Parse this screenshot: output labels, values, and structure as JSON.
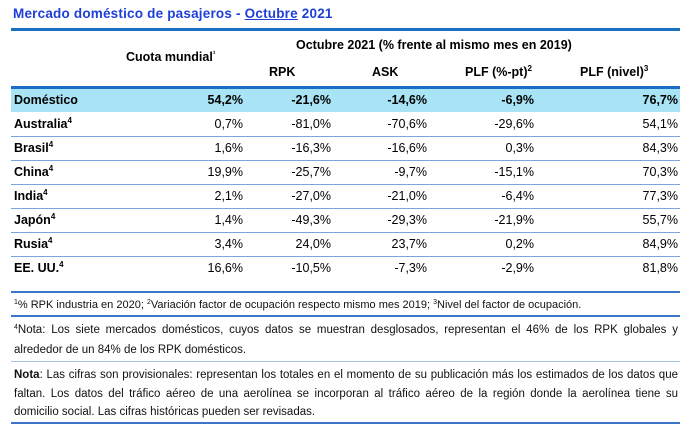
{
  "title": {
    "prefix": "Mercado doméstico de pasajeros - ",
    "month": "Octubre",
    "year": " 2021"
  },
  "header": {
    "group_label": "Octubre 2021 (% frente al mismo mes en 2019)",
    "share_label": "Cuota mundial",
    "share_sup": "¹",
    "columns": [
      {
        "label": "RPK",
        "sup": ""
      },
      {
        "label": "ASK",
        "sup": ""
      },
      {
        "label": "PLF (%-pt)",
        "sup": "2"
      },
      {
        "label": "PLF (nivel)",
        "sup": "3"
      }
    ]
  },
  "rows": [
    {
      "name": "Doméstico",
      "sup": "",
      "share": "54,2%",
      "rpk": "-21,6%",
      "ask": "-14,6%",
      "plf_pt": "-6,9%",
      "plf_level": "76,7%"
    },
    {
      "name": "Australia",
      "sup": "4",
      "share": "0,7%",
      "rpk": "-81,0%",
      "ask": "-70,6%",
      "plf_pt": "-29,6%",
      "plf_level": "54,1%"
    },
    {
      "name": "Brasil",
      "sup": "4",
      "share": "1,6%",
      "rpk": "-16,3%",
      "ask": "-16,6%",
      "plf_pt": "0,3%",
      "plf_level": "84,3%"
    },
    {
      "name": "China",
      "sup": "4",
      "share": "19,9%",
      "rpk": "-25,7%",
      "ask": "-9,7%",
      "plf_pt": "-15,1%",
      "plf_level": "70,3%"
    },
    {
      "name": "India",
      "sup": "4",
      "share": "2,1%",
      "rpk": "-27,0%",
      "ask": "-21,0%",
      "plf_pt": "-6,4%",
      "plf_level": "77,3%"
    },
    {
      "name": "Japón",
      "sup": "4",
      "share": "1,4%",
      "rpk": "-49,3%",
      "ask": "-29,3%",
      "plf_pt": "-21,9%",
      "plf_level": "55,7%"
    },
    {
      "name": "Rusia",
      "sup": "4",
      "share": "3,4%",
      "rpk": "24,0%",
      "ask": "23,7%",
      "plf_pt": "0,2%",
      "plf_level": "84,9%"
    },
    {
      "name": "EE. UU.",
      "sup": "4",
      "share": "16,6%",
      "rpk": "-10,5%",
      "ask": "-7,3%",
      "plf_pt": "-2,9%",
      "plf_level": "81,8%"
    }
  ],
  "footnotes": {
    "f1_sup": "1",
    "f1_text": "% RPK industria en 2020; ",
    "f2_sup": "2",
    "f2_text": "Variación factor de ocupación respecto mismo mes 2019; ",
    "f3_sup": "3",
    "f3_text": "Nivel del factor de ocupación.",
    "f4_sup": "4",
    "f4_text": "Nota: Los siete mercados domésticos, cuyos datos se muestran desglosados, representan el 46% de los RPK globales y alrededor de un 84% de los RPK domésticos.",
    "nota_label": "Nota",
    "nota_text": ": Las cifras son provisionales: representan los totales en el momento de su publicación más los estimados de los datos que faltan. Los datos del tráfico aéreo de una aerolínea se incorporan al tráfico aéreo de la región donde la aerolínea tiene su domicilio social. Las cifras históricas pueden ser revisadas."
  },
  "colors": {
    "title": "#1f3fd6",
    "rule": "#1a6fc4",
    "highlight_row": "#a8e4f5"
  }
}
